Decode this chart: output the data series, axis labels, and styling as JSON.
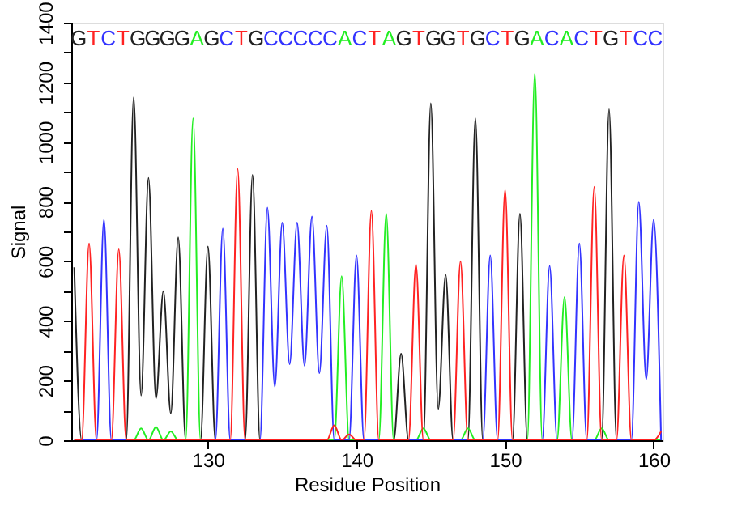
{
  "chart_data": {
    "type": "line",
    "xlabel": "Residue Position",
    "ylabel": "Signal",
    "x": [
      121,
      121.5,
      122,
      122.5,
      123,
      123.5,
      124,
      124.5,
      125,
      125.5,
      126,
      126.5,
      127,
      127.5,
      128,
      128.5,
      129,
      129.5,
      130,
      130.5,
      131,
      131.5,
      132,
      132.5,
      133,
      133.5,
      134,
      134.5,
      135,
      135.5,
      136,
      136.5,
      137,
      137.5,
      138,
      138.5,
      139,
      139.5,
      140,
      140.5,
      141,
      141.5,
      142,
      142.5,
      143,
      143.5,
      144,
      144.5,
      145,
      145.5,
      146,
      146.5,
      147,
      147.5,
      148,
      148.5,
      149,
      149.5,
      150,
      150.5,
      151,
      151.5,
      152,
      152.5,
      153,
      153.5,
      154,
      154.5,
      155,
      155.5,
      156,
      156.5,
      157,
      157.5,
      158,
      158.5,
      159,
      159.5,
      160,
      160.5
    ],
    "series": [
      {
        "color": "#222222",
        "values": [
          580,
          0,
          0,
          0,
          0,
          0,
          0,
          0,
          1150,
          150,
          880,
          140,
          500,
          90,
          680,
          0,
          0,
          0,
          650,
          0,
          0,
          0,
          0,
          0,
          890,
          0,
          0,
          0,
          0,
          0,
          0,
          0,
          0,
          0,
          0,
          0,
          0,
          0,
          0,
          0,
          0,
          0,
          0,
          0,
          290,
          0,
          0,
          0,
          1130,
          105,
          555,
          0,
          0,
          0,
          1080,
          0,
          0,
          0,
          0,
          0,
          760,
          0,
          0,
          0,
          0,
          0,
          0,
          0,
          0,
          0,
          0,
          0,
          1110,
          0,
          0,
          0,
          0,
          0,
          0,
          0
        ]
      },
      {
        "color": "#22ee22",
        "values": [
          null,
          null,
          null,
          null,
          null,
          null,
          0,
          0,
          0,
          40,
          0,
          45,
          0,
          30,
          0,
          0,
          1080,
          0,
          0,
          0,
          0,
          0,
          0,
          0,
          0,
          0,
          0,
          0,
          0,
          0,
          0,
          0,
          0,
          0,
          0,
          0,
          550,
          0,
          0,
          0,
          0,
          0,
          760,
          0,
          0,
          0,
          0,
          40,
          0,
          0,
          0,
          0,
          0,
          40,
          0,
          0,
          0,
          0,
          0,
          0,
          0,
          0,
          1230,
          0,
          0,
          0,
          480,
          0,
          0,
          0,
          0,
          40,
          0,
          0,
          0,
          0,
          0,
          0,
          0,
          0
        ]
      },
      {
        "color": "#3333ff",
        "values": [
          0,
          0,
          0,
          0,
          740,
          0,
          0,
          0,
          0,
          0,
          0,
          0,
          0,
          0,
          0,
          0,
          0,
          0,
          0,
          0,
          710,
          0,
          0,
          0,
          0,
          0,
          780,
          180,
          730,
          255,
          730,
          250,
          750,
          225,
          720,
          0,
          0,
          0,
          620,
          0,
          0,
          0,
          0,
          0,
          0,
          0,
          0,
          0,
          0,
          0,
          0,
          0,
          0,
          0,
          0,
          0,
          620,
          0,
          0,
          0,
          0,
          0,
          0,
          0,
          585,
          0,
          0,
          0,
          660,
          0,
          0,
          0,
          0,
          0,
          0,
          0,
          800,
          205,
          740,
          0
        ]
      },
      {
        "color": "#ff2222",
        "values": [
          0,
          0,
          660,
          0,
          0,
          0,
          640,
          0,
          0,
          0,
          0,
          0,
          0,
          0,
          0,
          0,
          0,
          0,
          0,
          0,
          0,
          0,
          910,
          0,
          0,
          0,
          0,
          0,
          0,
          0,
          0,
          0,
          0,
          0,
          0,
          50,
          0,
          20,
          0,
          0,
          770,
          0,
          0,
          0,
          0,
          0,
          590,
          0,
          0,
          0,
          0,
          0,
          600,
          0,
          0,
          0,
          0,
          0,
          840,
          0,
          0,
          0,
          0,
          0,
          0,
          0,
          0,
          0,
          0,
          0,
          850,
          0,
          0,
          0,
          620,
          0,
          0,
          0,
          0,
          30
        ]
      }
    ],
    "xlim": [
      120.8,
      160.6
    ],
    "xticks": [
      130,
      140,
      150,
      160
    ],
    "ylim": [
      0,
      1400
    ],
    "yticks": [
      0,
      {
        "value": 100,
        "label": null
      },
      200,
      {
        "value": 300,
        "label": null
      },
      400,
      {
        "value": 500,
        "label": null
      },
      600,
      {
        "value": 700,
        "label": null
      },
      800,
      {
        "value": 900,
        "label": null
      },
      1000,
      {
        "value": 1100,
        "label": null
      },
      1200,
      {
        "value": 1300,
        "label": null
      },
      1400
    ],
    "annotations": [
      "G",
      "T",
      "C",
      "T",
      "G",
      "G",
      "G",
      "G",
      "A",
      "G",
      "C",
      "T",
      "G",
      "C",
      "C",
      "C",
      "C",
      "C",
      "A",
      "C",
      "T",
      "A",
      "G",
      "T",
      "G",
      "G",
      "T",
      "G",
      "C",
      "T",
      "G",
      "A",
      "C",
      "A",
      "C",
      "T",
      "G",
      "T",
      "C",
      "C"
    ],
    "grid": false
  }
}
